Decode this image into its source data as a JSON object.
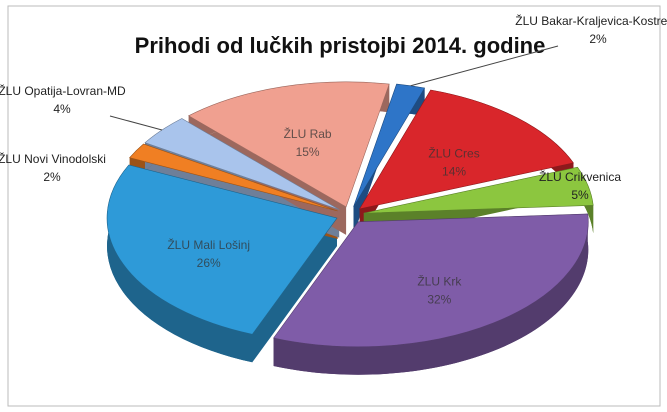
{
  "chart_data": {
    "type": "pie",
    "title": "Prihodi od lučkih pristojbi 2014. godine",
    "categories": [
      "ŽLU Bakar-Kraljevica-Kostrena",
      "ŽLU Cres",
      "ŽLU Crikvenica",
      "ŽLU Krk",
      "ŽLU Mali Lošinj",
      "ŽLU Novi Vinodolski",
      "ŽLU Opatija-Lovran-MD",
      "ŽLU Rab"
    ],
    "values": [
      2,
      14,
      5,
      32,
      26,
      2,
      4,
      15
    ],
    "value_labels": [
      "2%",
      "14%",
      "5%",
      "32%",
      "26%",
      "2%",
      "4%",
      "15%"
    ],
    "colors": [
      "#2e75c8",
      "#d9262b",
      "#8cc63f",
      "#7f5ca8",
      "#2e9ad8",
      "#f07f23",
      "#a9c4ec",
      "#f0a090"
    ]
  }
}
